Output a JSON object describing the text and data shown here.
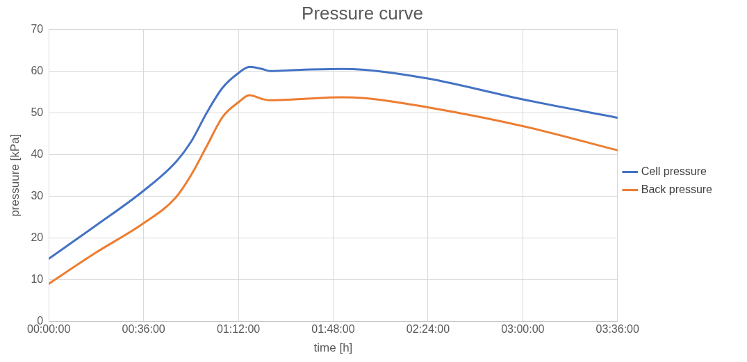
{
  "chart_data": {
    "type": "line",
    "title": "Pressure curve",
    "xlabel": "time [h]",
    "ylabel": "pressuure [kPa]",
    "x": [
      0,
      0.3,
      0.6,
      0.8,
      0.9,
      1.0,
      1.1,
      1.2,
      1.27,
      1.35,
      1.4,
      1.6,
      1.85,
      2.0,
      2.4,
      3.0,
      3.6
    ],
    "series": [
      {
        "name": "Cell pressure",
        "color": "#4472c4",
        "values": [
          15,
          23,
          31.3,
          38,
          43,
          50,
          56,
          59.5,
          61,
          60.5,
          60,
          60.3,
          60.5,
          60.3,
          58.2,
          53.2,
          48.8
        ]
      },
      {
        "name": "Back pressure",
        "color": "#ed7d31",
        "values": [
          9,
          16.5,
          23.5,
          29.5,
          35,
          42,
          49,
          52.5,
          54.2,
          53.3,
          53,
          53.3,
          53.7,
          53.5,
          51.3,
          46.8,
          41
        ]
      }
    ],
    "xlim": [
      0,
      3.6
    ],
    "xticks": [
      {
        "value": 0,
        "label": "00:00:00"
      },
      {
        "value": 0.6,
        "label": "00:36:00"
      },
      {
        "value": 1.2,
        "label": "01:12:00"
      },
      {
        "value": 1.8,
        "label": "01:48:00"
      },
      {
        "value": 2.4,
        "label": "02:24:00"
      },
      {
        "value": 3.0,
        "label": "03:00:00"
      },
      {
        "value": 3.6,
        "label": "03:36:00"
      }
    ],
    "ylim": [
      0,
      70
    ],
    "yticks": [
      0,
      10,
      20,
      30,
      40,
      50,
      60,
      70
    ],
    "grid": true,
    "legend": "right",
    "marker": "none",
    "line_style": "solid"
  }
}
